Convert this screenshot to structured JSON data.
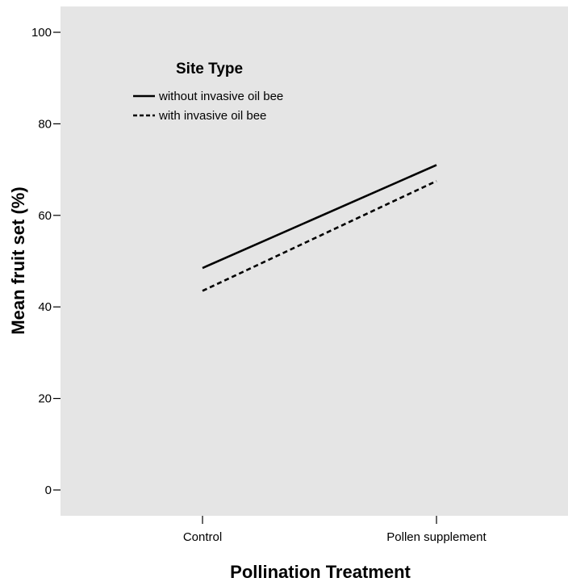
{
  "chart_data": {
    "type": "line",
    "title": "",
    "xlabel": "Pollination Treatment",
    "ylabel": "Mean fruit set (%)",
    "categories": [
      "Control",
      "Pollen supplement"
    ],
    "ylim": [
      0,
      100
    ],
    "yticks": [
      0,
      20,
      40,
      60,
      80,
      100
    ],
    "grid": false,
    "legend": {
      "title": "Site Type",
      "placement": "top-left"
    },
    "series": [
      {
        "name": "without invasive oil bee",
        "values": [
          48.5,
          71.0
        ],
        "line_style": "solid"
      },
      {
        "name": "with invasive oil bee",
        "values": [
          43.5,
          67.5
        ],
        "line_style": "dashed"
      }
    ],
    "colors": {
      "plot_background": "#e5e5e5",
      "line": "#000000"
    }
  }
}
